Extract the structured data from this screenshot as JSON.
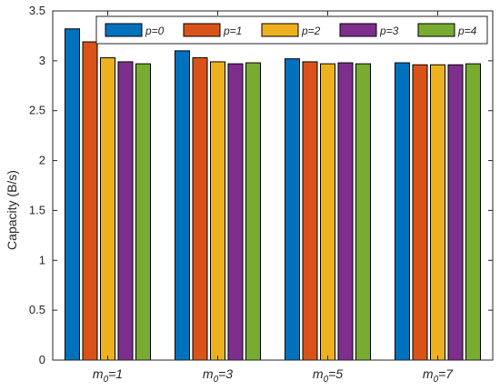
{
  "chart_data": {
    "type": "bar",
    "title": "",
    "xlabel": "",
    "ylabel": "Capacity (B/s)",
    "ylim": [
      0,
      3.5
    ],
    "yticks": [
      "0",
      "0.5",
      "1",
      "1.5",
      "2",
      "2.5",
      "3",
      "3.5"
    ],
    "grid": false,
    "legend_position": "top",
    "categories": [
      {
        "base": "m",
        "sub": "0",
        "rest": "=1"
      },
      {
        "base": "m",
        "sub": "0",
        "rest": "=3"
      },
      {
        "base": "m",
        "sub": "0",
        "rest": "=5"
      },
      {
        "base": "m",
        "sub": "0",
        "rest": "=7"
      }
    ],
    "series": [
      {
        "name": "p=0",
        "color": "#0072BD",
        "values": [
          3.32,
          3.1,
          3.02,
          2.98
        ]
      },
      {
        "name": "p=1",
        "color": "#D95319",
        "values": [
          3.19,
          3.03,
          2.99,
          2.96
        ]
      },
      {
        "name": "p=2",
        "color": "#EDB120",
        "values": [
          3.03,
          2.99,
          2.97,
          2.96
        ]
      },
      {
        "name": "p=3",
        "color": "#7E2F8E",
        "values": [
          2.99,
          2.97,
          2.98,
          2.96
        ]
      },
      {
        "name": "p=4",
        "color": "#77AC30",
        "values": [
          2.97,
          2.98,
          2.97,
          2.97
        ]
      }
    ]
  }
}
